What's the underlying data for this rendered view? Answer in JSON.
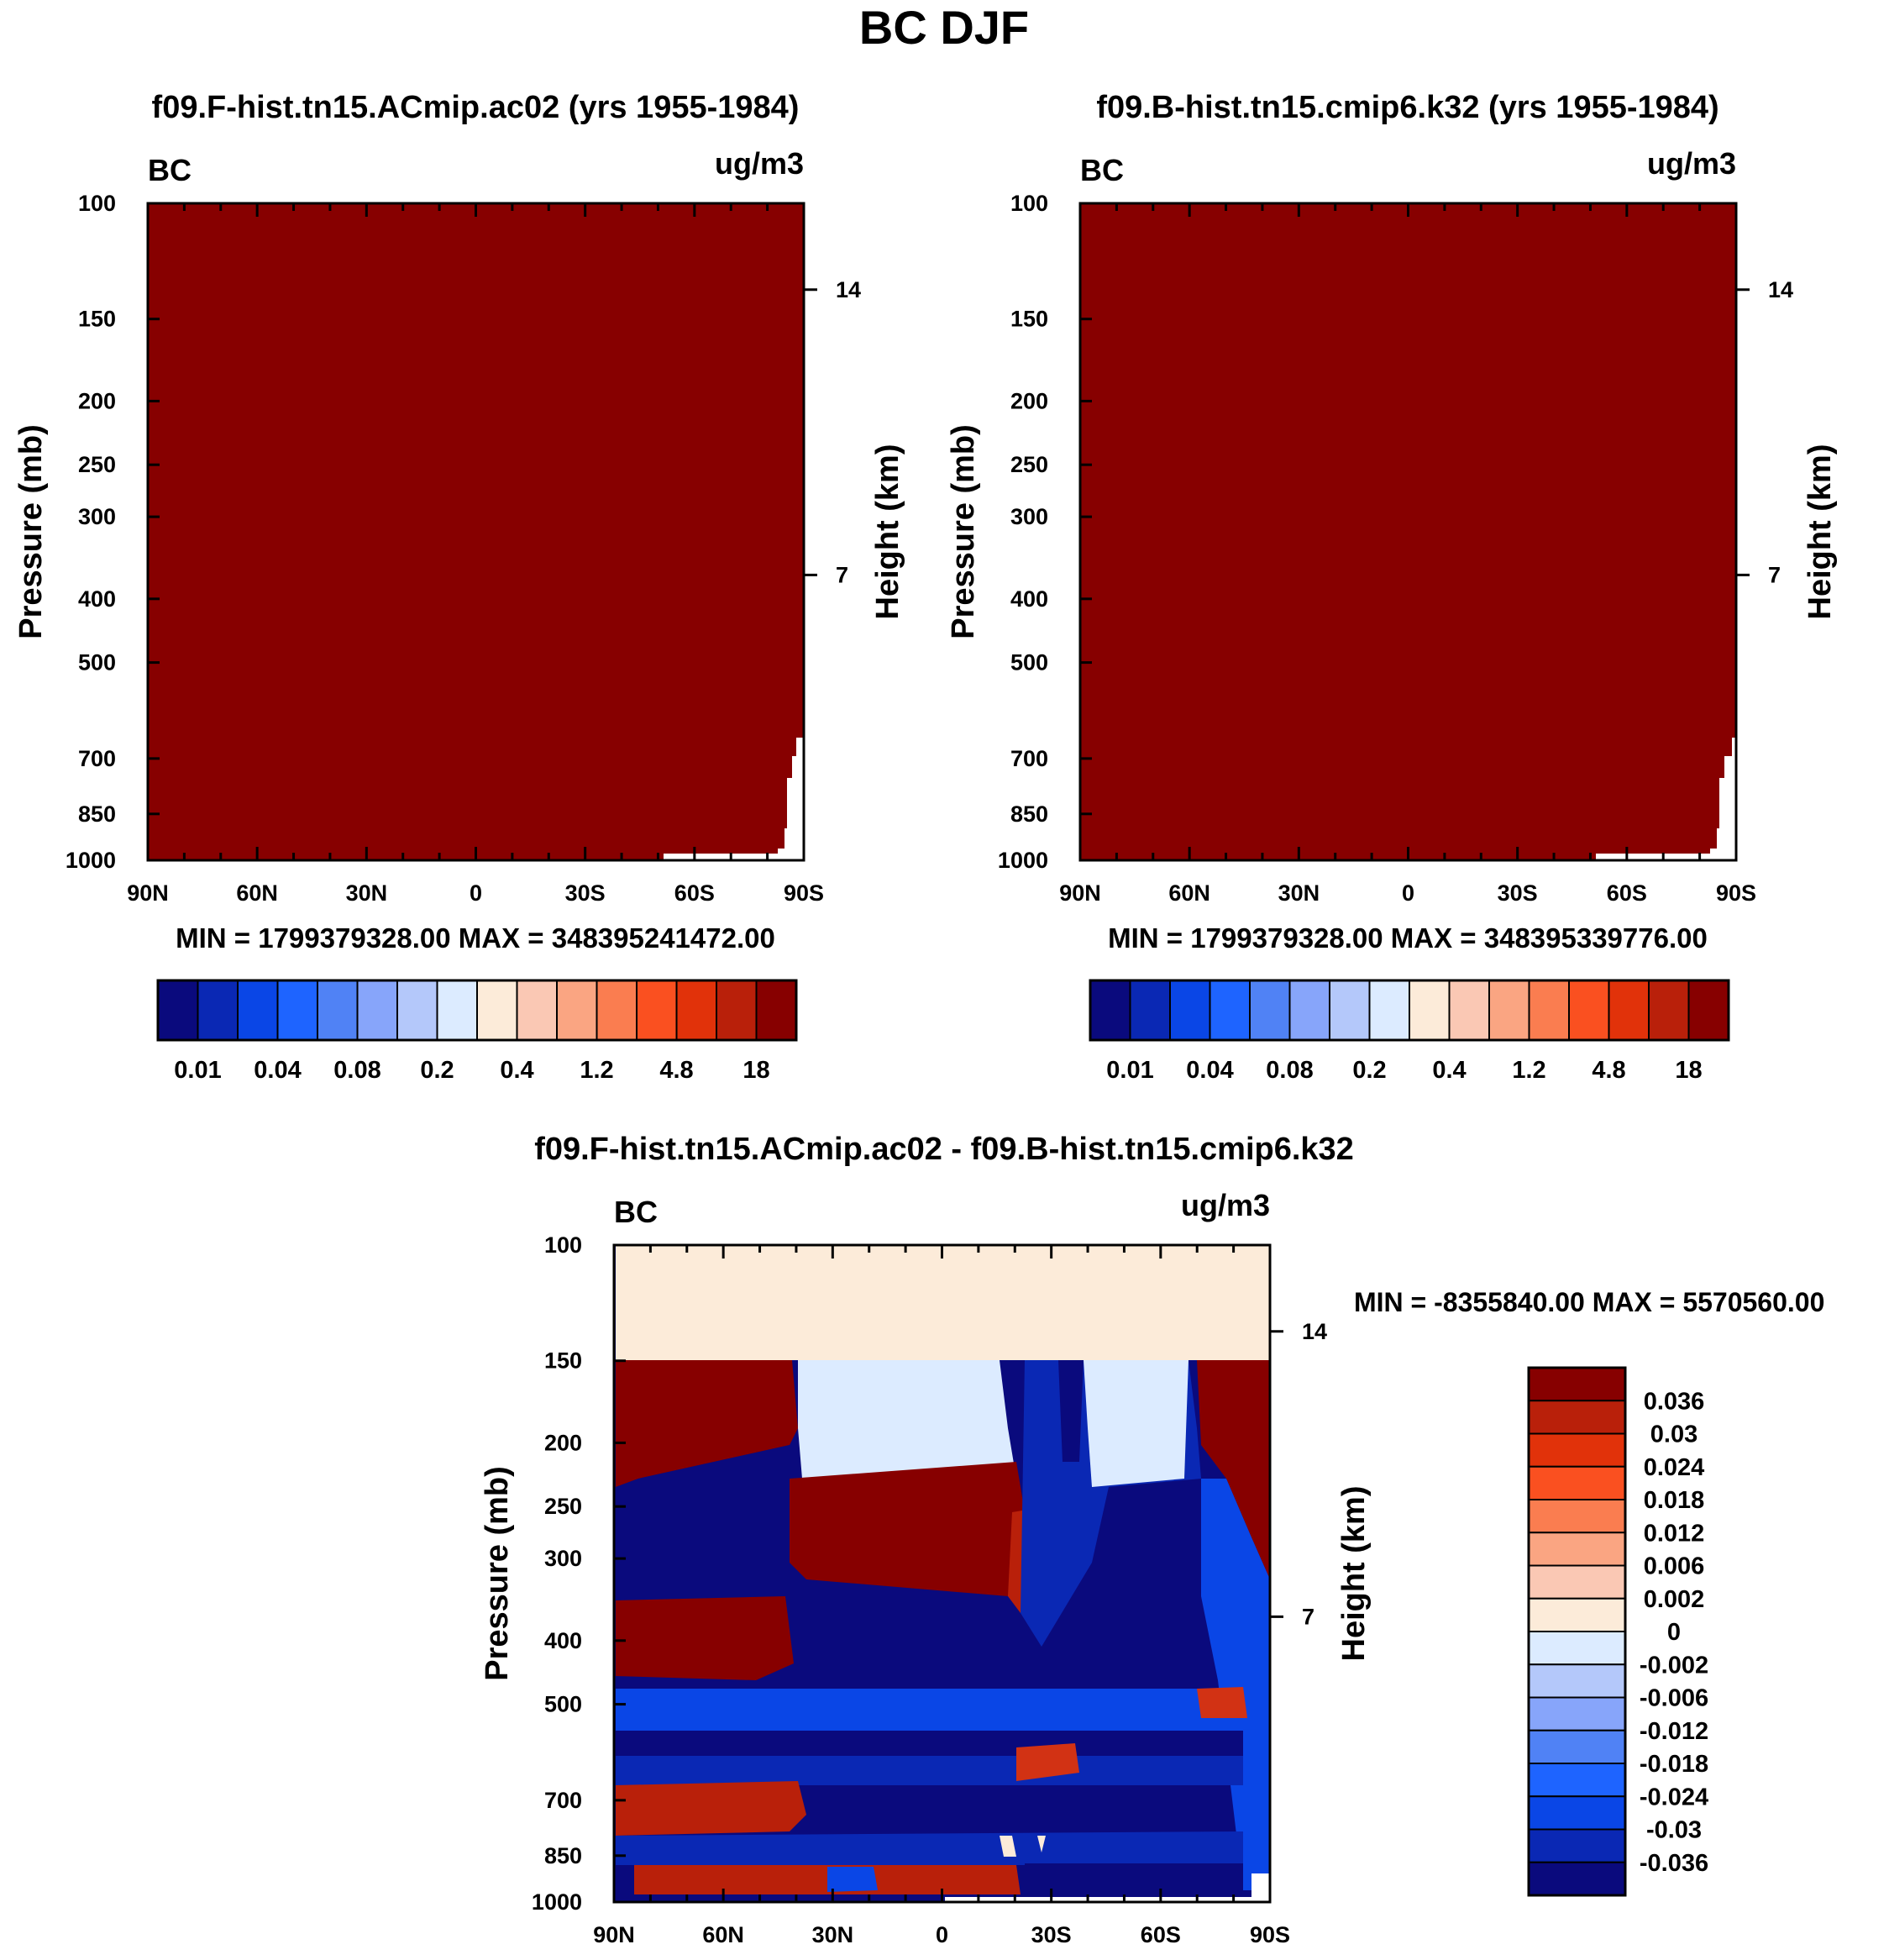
{
  "title": "BC DJF",
  "colors": {
    "axis": "#000000",
    "background": "#ffffff"
  },
  "panels": {
    "p1": {
      "title": "f09.F-hist.tn15.ACmip.ac02 (yrs 1955-1984)",
      "left_label": "BC",
      "right_label": "ug/m3",
      "min_max": "MIN = 1799379328.00   MAX = 348395241472.00"
    },
    "p2": {
      "title": "f09.B-hist.tn15.cmip6.k32 (yrs 1955-1984)",
      "left_label": "BC",
      "right_label": "ug/m3",
      "min_max": "MIN = 1799379328.00   MAX = 348395339776.00"
    },
    "p3": {
      "title": "f09.F-hist.tn15.ACmip.ac02 - f09.B-hist.tn15.cmip6.k32",
      "left_label": "BC",
      "right_label": "ug/m3",
      "min_max": "MIN = -8355840.00   MAX = 5570560.00"
    }
  },
  "chart_data": [
    {
      "type": "heatmap",
      "title": "f09.F-hist.tn15.ACmip.ac02 (yrs 1955-1984)",
      "ylabel": "Pressure (mb)",
      "ylabel_right": "Height (km)",
      "y_ticks": [
        100,
        150,
        200,
        250,
        300,
        400,
        500,
        700,
        850,
        1000
      ],
      "y_ticks_right": [
        14,
        7
      ],
      "x_ticks": [
        "90N",
        "60N",
        "30N",
        "0",
        "30S",
        "60S",
        "90S"
      ],
      "colorbar": {
        "labels": [
          "0.01",
          "0.04",
          "0.08",
          "0.2",
          "0.4",
          "1.2",
          "4.8",
          "18"
        ],
        "colors": [
          "#0a0a7d",
          "#0a28b4",
          "#0a46e6",
          "#1e64ff",
          "#5082f5",
          "#87a5fa",
          "#b4c8fa",
          "#dcebff",
          "#fcebd9",
          "#fac8b4",
          "#faa582",
          "#fa7d50",
          "#fa5020",
          "#e1320a",
          "#b9200a",
          "#870000"
        ]
      },
      "field_note": "uniform top level color 18+ with small missing region near 90S surface",
      "field_color": "#870000"
    },
    {
      "type": "heatmap",
      "title": "f09.B-hist.tn15.cmip6.k32 (yrs 1955-1984)",
      "ylabel": "Pressure (mb)",
      "ylabel_right": "Height (km)",
      "y_ticks": [
        100,
        150,
        200,
        250,
        300,
        400,
        500,
        700,
        850,
        1000
      ],
      "y_ticks_right": [
        14,
        7
      ],
      "x_ticks": [
        "90N",
        "60N",
        "30N",
        "0",
        "30S",
        "60S",
        "90S"
      ],
      "colorbar": {
        "labels": [
          "0.01",
          "0.04",
          "0.08",
          "0.2",
          "0.4",
          "1.2",
          "4.8",
          "18"
        ],
        "colors": [
          "#0a0a7d",
          "#0a28b4",
          "#0a46e6",
          "#1e64ff",
          "#5082f5",
          "#87a5fa",
          "#b4c8fa",
          "#dcebff",
          "#fcebd9",
          "#fac8b4",
          "#faa582",
          "#fa7d50",
          "#fa5020",
          "#e1320a",
          "#b9200a",
          "#870000"
        ]
      },
      "field_color": "#870000"
    },
    {
      "type": "heatmap",
      "title": "f09.F-hist.tn15.ACmip.ac02 - f09.B-hist.tn15.cmip6.k32",
      "ylabel": "Pressure (mb)",
      "ylabel_right": "Height (km)",
      "y_ticks": [
        100,
        150,
        200,
        250,
        300,
        400,
        500,
        700,
        850,
        1000
      ],
      "y_ticks_right": [
        14,
        7
      ],
      "x_ticks": [
        "90N",
        "60N",
        "30N",
        "0",
        "30S",
        "60S",
        "90S"
      ],
      "colorbar": {
        "labels": [
          "0.036",
          "0.03",
          "0.024",
          "0.018",
          "0.012",
          "0.006",
          "0.002",
          "0",
          "-0.002",
          "-0.006",
          "-0.012",
          "-0.018",
          "-0.024",
          "-0.03",
          "-0.036"
        ],
        "colors": [
          "#870000",
          "#b9200a",
          "#e1320a",
          "#fa5020",
          "#fa7d50",
          "#faa582",
          "#fac8b4",
          "#fcebd9",
          "#dcebff",
          "#b4c8fa",
          "#87a5fa",
          "#5082f5",
          "#1e64ff",
          "#0a46e6",
          "#0a28b4",
          "#0a0a7d"
        ]
      },
      "palette": {
        "dark_red": "#870000",
        "red": "#b9200a",
        "orange_red": "#d23214",
        "cream": "#fcebd9",
        "light_blue": "#dcebff",
        "blue": "#0a28b4",
        "mid_blue": "#0a46e6",
        "navy": "#0a0a7d"
      }
    }
  ]
}
